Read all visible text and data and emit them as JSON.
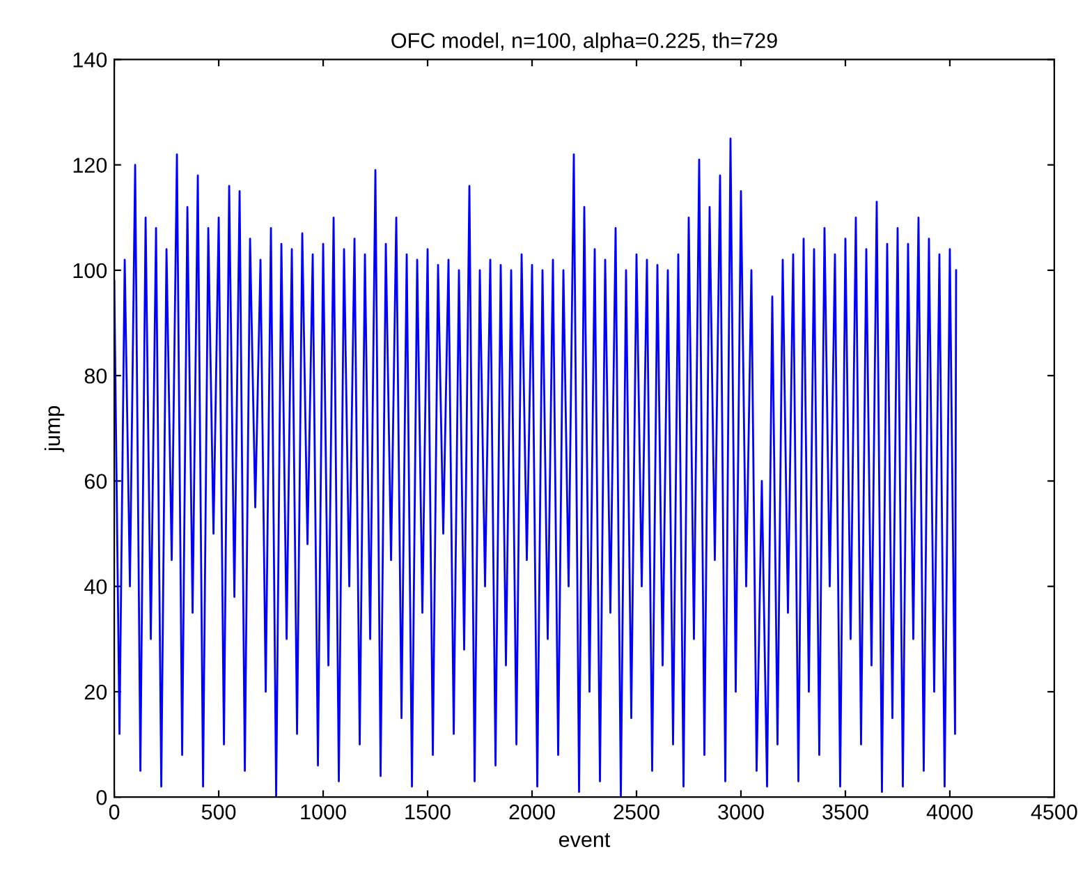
{
  "chart_data": {
    "type": "line",
    "title": "OFC model, n=100, alpha=0.225, th=729",
    "xlabel": "event",
    "ylabel": "jump",
    "xlim": [
      0,
      4500
    ],
    "xticks": [
      0,
      500,
      1000,
      1500,
      2000,
      2500,
      3000,
      3500,
      4000,
      4500
    ],
    "ylim": [
      0,
      140
    ],
    "yticks": [
      0,
      20,
      40,
      60,
      80,
      100,
      120,
      140
    ],
    "grid": false,
    "marker": "none",
    "line_style": "solid",
    "series": [
      {
        "color": "#0000ff",
        "x": [
          0,
          25,
          50,
          75,
          100,
          125,
          150,
          175,
          200,
          225,
          250,
          275,
          300,
          325,
          350,
          375,
          400,
          425,
          450,
          475,
          500,
          525,
          550,
          575,
          600,
          625,
          650,
          675,
          700,
          725,
          750,
          775,
          800,
          825,
          850,
          875,
          900,
          925,
          950,
          975,
          1000,
          1025,
          1050,
          1075,
          1100,
          1125,
          1150,
          1175,
          1200,
          1225,
          1250,
          1275,
          1300,
          1325,
          1350,
          1375,
          1400,
          1425,
          1450,
          1475,
          1500,
          1525,
          1550,
          1575,
          1600,
          1625,
          1650,
          1675,
          1700,
          1725,
          1750,
          1775,
          1800,
          1825,
          1850,
          1875,
          1900,
          1925,
          1950,
          1975,
          2000,
          2025,
          2050,
          2075,
          2100,
          2125,
          2150,
          2175,
          2200,
          2225,
          2250,
          2275,
          2300,
          2325,
          2350,
          2375,
          2400,
          2425,
          2450,
          2475,
          2500,
          2525,
          2550,
          2575,
          2600,
          2625,
          2650,
          2675,
          2700,
          2725,
          2750,
          2775,
          2800,
          2825,
          2850,
          2875,
          2900,
          2925,
          2950,
          2975,
          3000,
          3025,
          3050,
          3075,
          3100,
          3125,
          3150,
          3175,
          3200,
          3225,
          3250,
          3275,
          3300,
          3325,
          3350,
          3375,
          3400,
          3425,
          3450,
          3475,
          3500,
          3525,
          3550,
          3575,
          3600,
          3625,
          3650,
          3675,
          3700,
          3725,
          3750,
          3775,
          3800,
          3825,
          3850,
          3875,
          3900,
          3925,
          3950,
          3975,
          4000,
          4025,
          4030
        ],
        "values": [
          98,
          12,
          102,
          40,
          120,
          5,
          110,
          30,
          108,
          2,
          104,
          45,
          122,
          8,
          112,
          35,
          118,
          2,
          108,
          50,
          110,
          10,
          116,
          38,
          115,
          5,
          106,
          55,
          102,
          20,
          108,
          0,
          105,
          30,
          104,
          12,
          107,
          48,
          103,
          6,
          105,
          25,
          110,
          3,
          104,
          40,
          106,
          10,
          103,
          30,
          119,
          4,
          105,
          45,
          110,
          15,
          103,
          2,
          102,
          35,
          104,
          8,
          101,
          50,
          102,
          12,
          100,
          28,
          116,
          3,
          100,
          40,
          102,
          6,
          101,
          25,
          100,
          10,
          103,
          45,
          101,
          2,
          100,
          30,
          102,
          8,
          100,
          40,
          122,
          1,
          112,
          20,
          104,
          3,
          102,
          35,
          108,
          0,
          100,
          15,
          103,
          40,
          102,
          5,
          101,
          25,
          100,
          10,
          103,
          2,
          110,
          30,
          121,
          8,
          112,
          45,
          118,
          3,
          125,
          20,
          115,
          40,
          100,
          5,
          60,
          2,
          95,
          10,
          102,
          35,
          103,
          3,
          106,
          20,
          104,
          8,
          108,
          40,
          103,
          2,
          106,
          30,
          110,
          10,
          104,
          25,
          113,
          1,
          105,
          15,
          108,
          2,
          105,
          30,
          110,
          5,
          106,
          20,
          103,
          2,
          104,
          12,
          100
        ]
      }
    ]
  }
}
